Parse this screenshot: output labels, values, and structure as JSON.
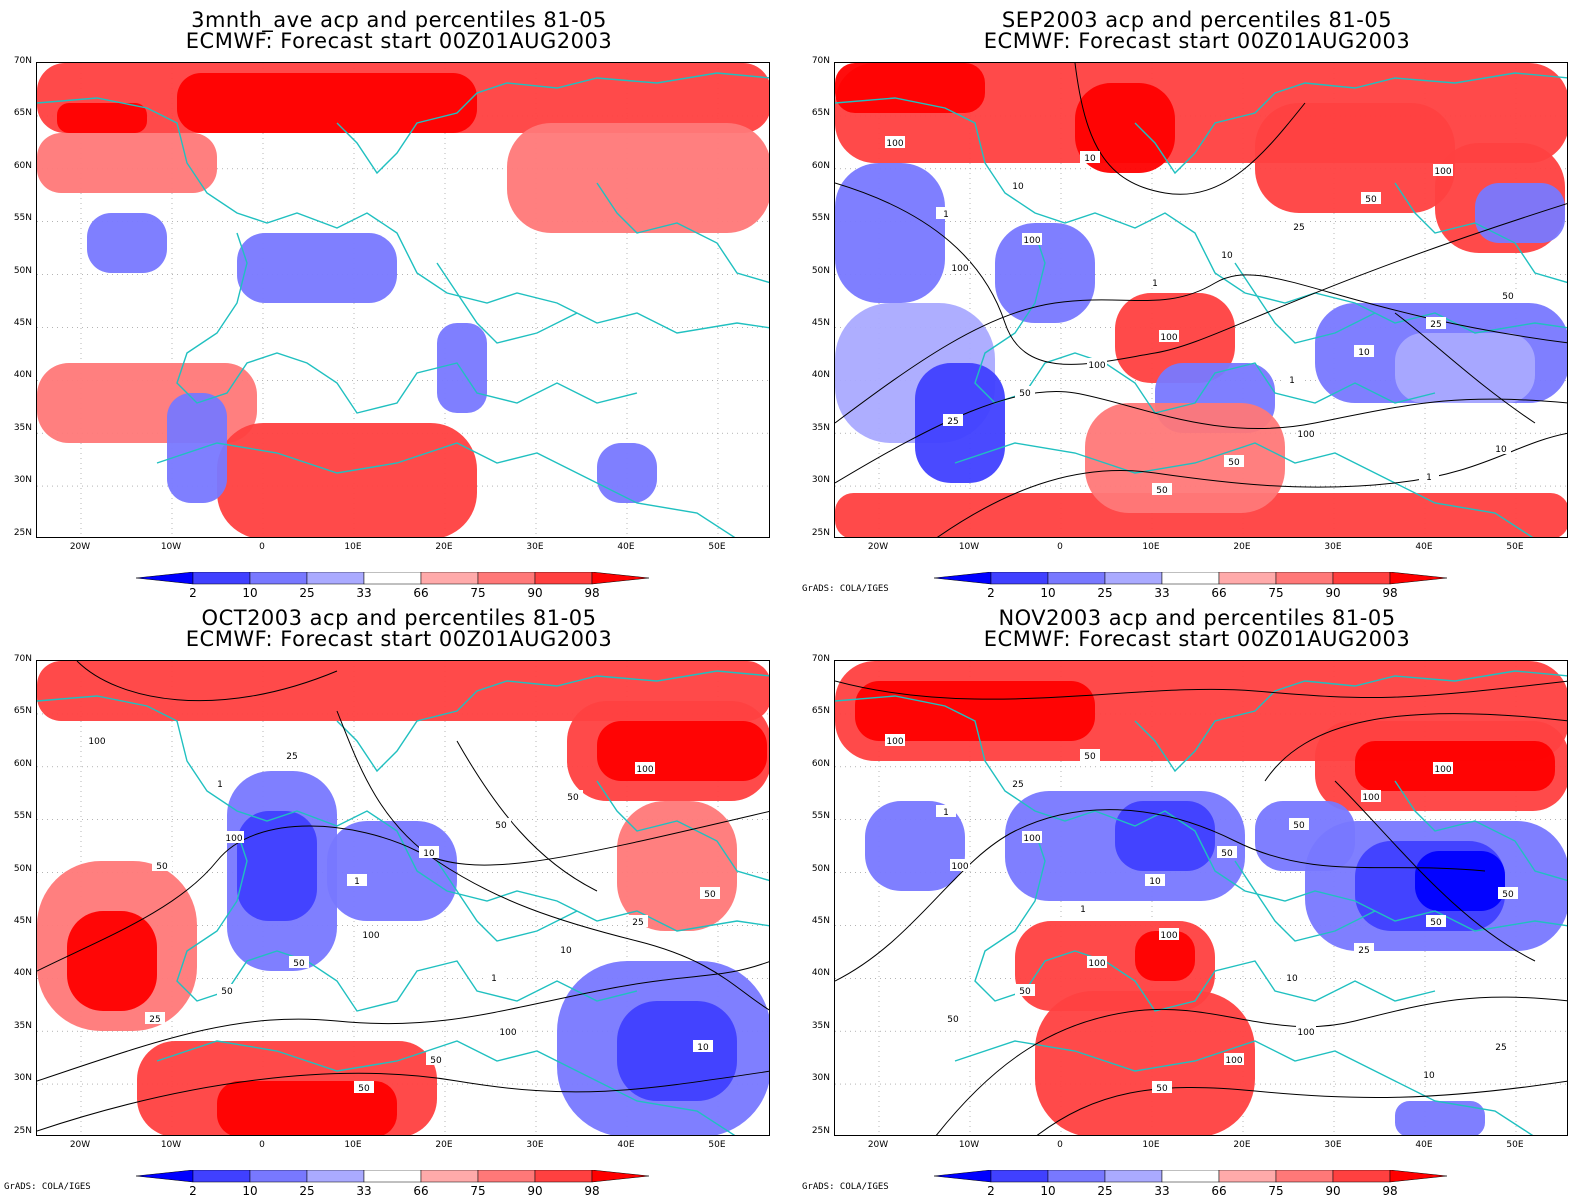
{
  "panels": [
    {
      "title_line1": "3mnth_ave acp and percentiles 81-05",
      "title_line2": "ECMWF: Forecast start 00Z01AUG2003",
      "credit": "",
      "contour_labels": []
    },
    {
      "title_line1": "SEP2003 acp and percentiles 81-05",
      "title_line2": "ECMWF: Forecast start 00Z01AUG2003",
      "credit": "GrADS: COLA/IGES",
      "contour_labels": [
        "100",
        "100",
        "100",
        "100",
        "100",
        "100",
        "100",
        "50",
        "50",
        "50",
        "50",
        "50",
        "25",
        "25",
        "25",
        "10",
        "10",
        "10",
        "10",
        "10",
        "1",
        "1",
        "1",
        "1"
      ]
    },
    {
      "title_line1": "OCT2003 acp and percentiles 81-05",
      "title_line2": "ECMWF: Forecast start 00Z01AUG2003",
      "credit": "GrADS: COLA/IGES",
      "contour_labels": [
        "100",
        "100",
        "100",
        "100",
        "100",
        "50",
        "50",
        "50",
        "50",
        "50",
        "50",
        "50",
        "50",
        "25",
        "25",
        "25",
        "10",
        "10",
        "10",
        "1",
        "1",
        "1"
      ]
    },
    {
      "title_line1": "NOV2003 acp and percentiles 81-05",
      "title_line2": "ECMWF: Forecast start 00Z01AUG2003",
      "credit": "GrADS: COLA/IGES",
      "contour_labels": [
        "100",
        "100",
        "100",
        "100",
        "100",
        "100",
        "100",
        "100",
        "100",
        "50",
        "50",
        "50",
        "50",
        "50",
        "50",
        "50",
        "50",
        "25",
        "25",
        "25",
        "10",
        "10",
        "10",
        "1",
        "1"
      ]
    }
  ],
  "lat_labels": [
    "70N",
    "65N",
    "60N",
    "55N",
    "50N",
    "45N",
    "40N",
    "35N",
    "30N",
    "25N"
  ],
  "lon_labels": [
    "20W",
    "10W",
    "0",
    "10E",
    "20E",
    "30E",
    "40E",
    "50E"
  ],
  "colorbar": {
    "labels": [
      "2",
      "10",
      "25",
      "33",
      "66",
      "75",
      "90",
      "98"
    ],
    "colors": [
      "#0000ff",
      "#4040ff",
      "#7878ff",
      "#aaaaff",
      "#ffffff",
      "#ffaaaa",
      "#ff7878",
      "#ff4040",
      "#ff0000"
    ]
  },
  "colors": {
    "coast": "#20c0c0",
    "contour": "#000000",
    "grid": "#888888"
  }
}
